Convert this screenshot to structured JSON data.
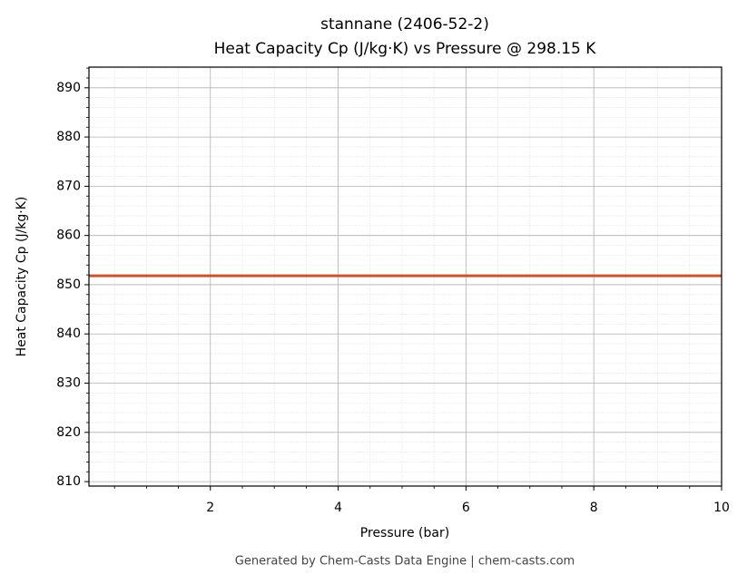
{
  "chart_data": {
    "type": "line",
    "title": "stannane (2406-52-2)",
    "subtitle": "Heat Capacity Cp (J/kg·K) vs Pressure @ 298.15 K",
    "x_label": "Pressure (bar)",
    "y_label": "Heat Capacity Cp (J/kg·K)",
    "footer": "Generated by Chem-Casts Data Engine | chem-casts.com",
    "x": [
      0.1,
      10
    ],
    "series": [
      {
        "name": "Cp",
        "color": "#c8552b",
        "values": [
          851.8,
          851.8
        ]
      }
    ],
    "xlim": [
      0.1,
      10
    ],
    "xticks": [
      2,
      4,
      6,
      8,
      10
    ],
    "ylim": [
      809.1,
      894.2
    ],
    "yticks": [
      810,
      820,
      830,
      840,
      850,
      860,
      870,
      880,
      890
    ],
    "grid": true,
    "minor_grid": true
  }
}
